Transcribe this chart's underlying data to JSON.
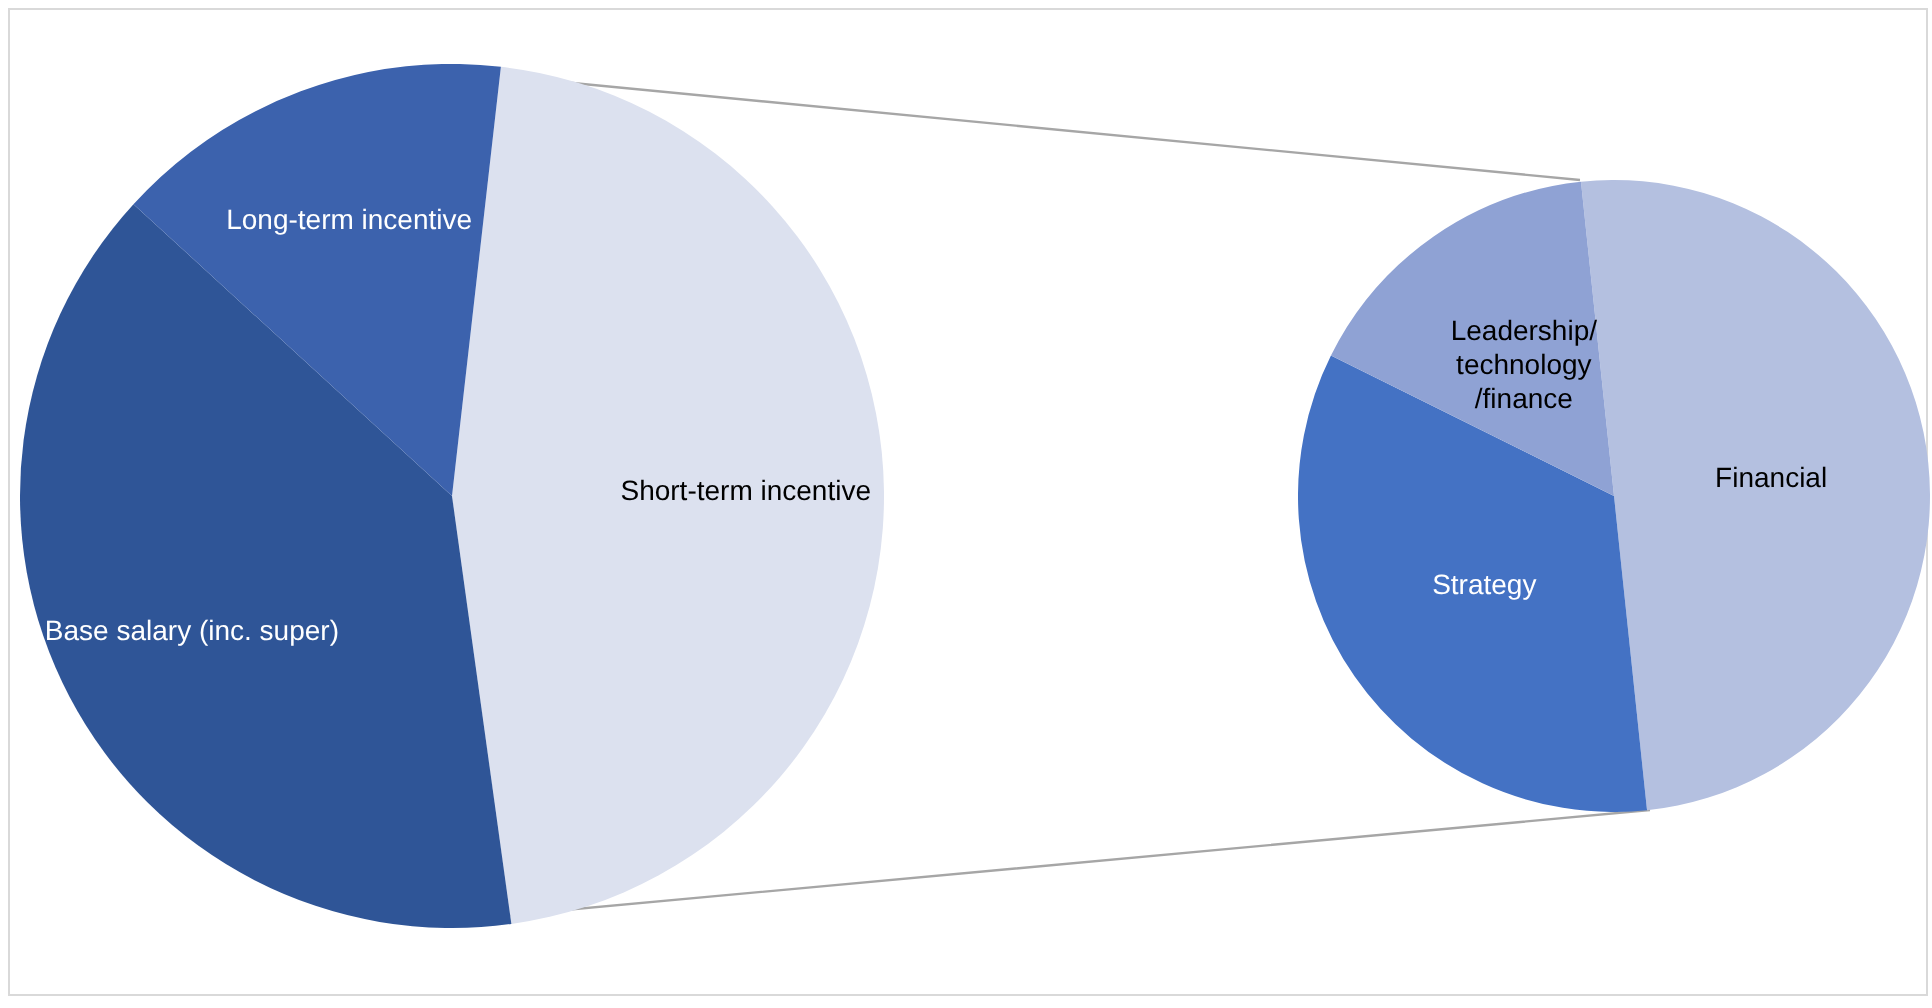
{
  "chart_data": [
    {
      "type": "pie",
      "categories": [
        "Short-term incentive",
        "Base salary (inc. super)",
        "Long-term incentive"
      ],
      "values": [
        46,
        39,
        15
      ],
      "colors": [
        "#dce1ef",
        "#2f5597",
        "#3c62ad"
      ],
      "legend": false
    },
    {
      "type": "pie",
      "categories": [
        "Financial",
        "Strategy",
        "Leadership/\ntechnology\n/finance"
      ],
      "values": [
        50,
        34,
        16
      ],
      "colors": [
        "#b4c0e0",
        "#4472c4",
        "#8fa2d4"
      ],
      "legend": false
    }
  ]
}
